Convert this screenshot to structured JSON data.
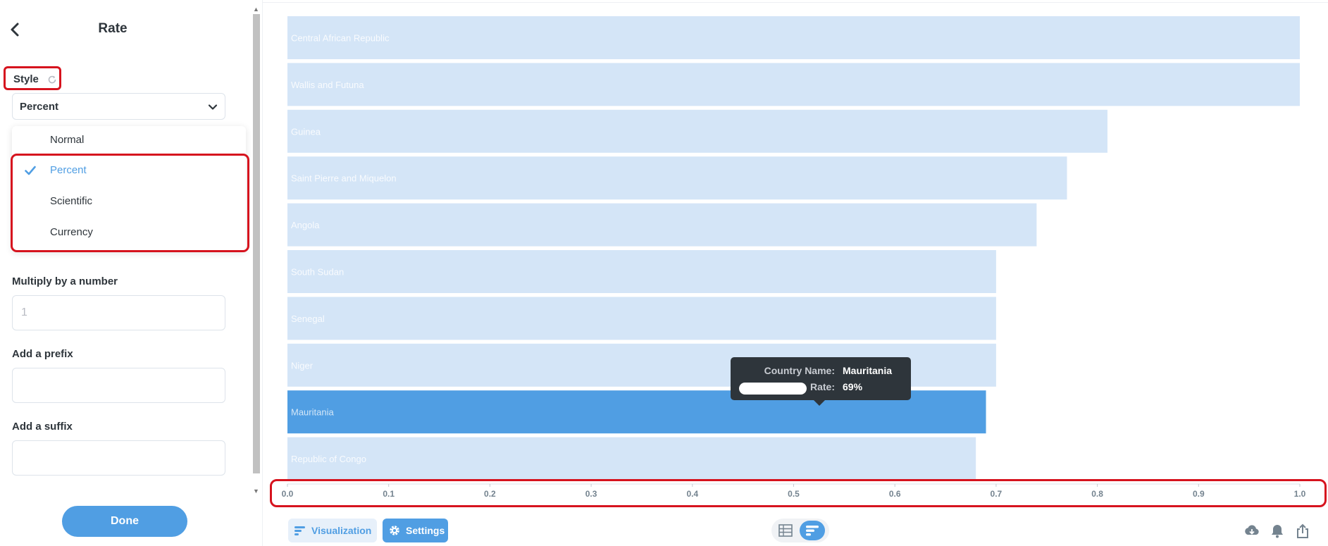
{
  "panel": {
    "title": "Rate",
    "style_label": "Style",
    "style_selected": "Percent",
    "style_options": [
      {
        "label": "Normal",
        "selected": false
      },
      {
        "label": "Percent",
        "selected": true
      },
      {
        "label": "Scientific",
        "selected": false
      },
      {
        "label": "Currency",
        "selected": false
      }
    ],
    "multiply_label": "Multiply by a number",
    "multiply_placeholder": "1",
    "prefix_label": "Add a prefix",
    "prefix_value": "",
    "suffix_label": "Add a suffix",
    "suffix_value": "",
    "done_label": "Done"
  },
  "colors": {
    "accent": "#509ee3",
    "bar_light": "#d4e5f7",
    "highlight_red": "#d6131e",
    "tooltip_bg": "#2e353b"
  },
  "chart_data": {
    "type": "bar",
    "orientation": "horizontal",
    "categories": [
      "Central African Republic",
      "Wallis and Futuna",
      "Guinea",
      "Saint Pierre and Miquelon",
      "Angola",
      "South Sudan",
      "Senegal",
      "Niger",
      "Mauritania",
      "Republic of Congo"
    ],
    "values": [
      1.0,
      1.0,
      0.81,
      0.77,
      0.74,
      0.7,
      0.7,
      0.7,
      0.69,
      0.68
    ],
    "highlighted_category": "Mauritania",
    "x_ticks": [
      "0.0",
      "0.1",
      "0.2",
      "0.3",
      "0.4",
      "0.5",
      "0.6",
      "0.7",
      "0.8",
      "0.9",
      "1.0"
    ],
    "xlim": [
      0,
      1.0
    ],
    "xlabel": "",
    "ylabel": ""
  },
  "tooltip": {
    "key1": "Country Name:",
    "val1": "Mauritania",
    "key2": "Rate:",
    "val2": "69%"
  },
  "bottom_bar": {
    "visualization_label": "Visualization",
    "settings_label": "Settings",
    "icons": [
      "table-icon",
      "bar-chart-icon",
      "download-icon",
      "bell-icon",
      "share-icon"
    ]
  }
}
